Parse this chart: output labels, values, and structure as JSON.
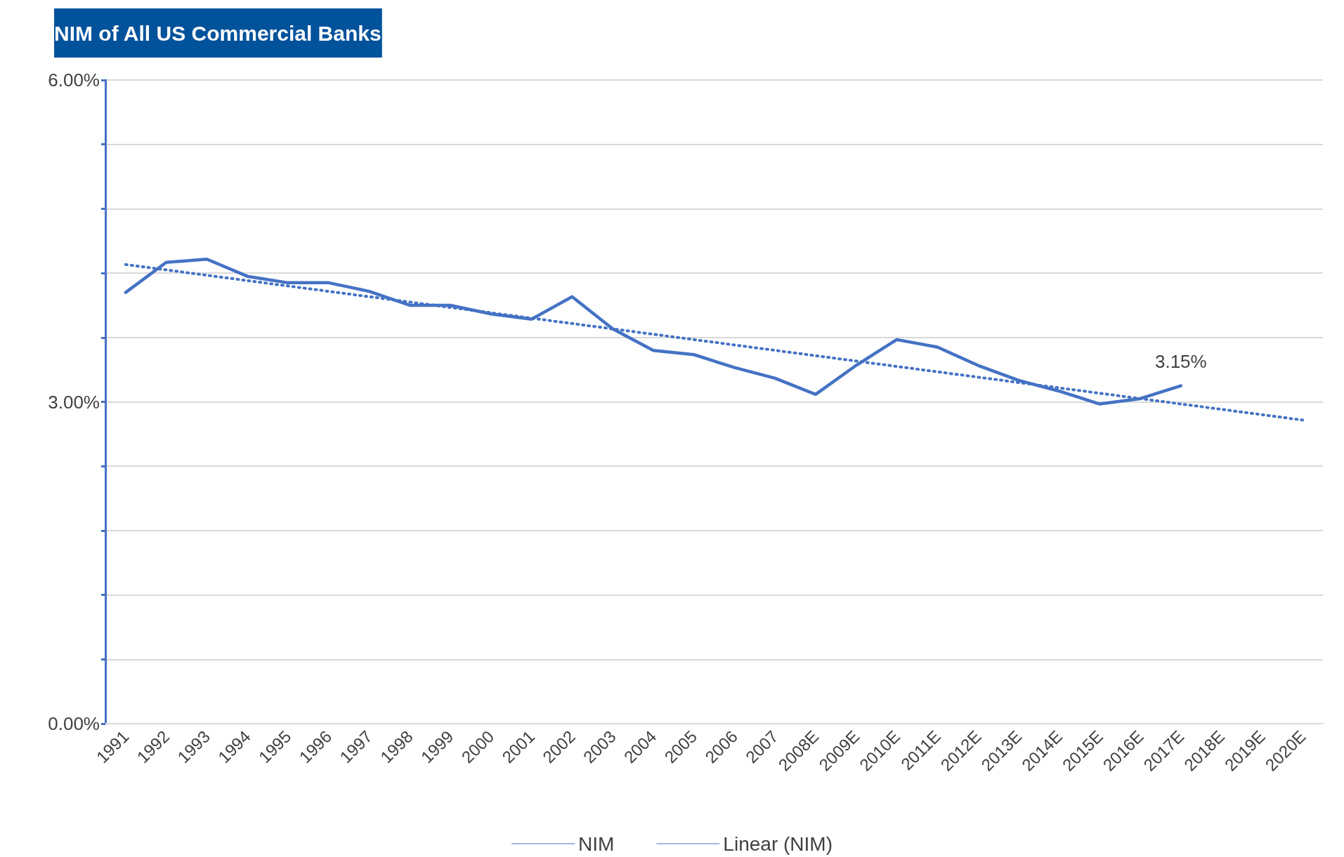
{
  "chart_data": {
    "type": "line",
    "title": "NIM of All US Commercial Banks",
    "categories": [
      "1991",
      "1992",
      "1993",
      "1994",
      "1995",
      "1996",
      "1997",
      "1998",
      "1999",
      "2000",
      "2001",
      "2002",
      "2003",
      "2004",
      "2005",
      "2006",
      "2007",
      "2008E",
      "2009E",
      "2010E",
      "2011E",
      "2012E",
      "2013E",
      "2014E",
      "2015E",
      "2016E",
      "2017E",
      "2018E",
      "2019E",
      "2020E"
    ],
    "series": [
      {
        "name": "NIM",
        "color": "#4472c4",
        "line_style": "solid",
        "values": [
          4.02,
          4.3,
          4.33,
          4.17,
          4.11,
          4.11,
          4.03,
          3.9,
          3.9,
          3.82,
          3.77,
          3.98,
          3.68,
          3.48,
          3.44,
          3.32,
          3.22,
          3.07,
          3.34,
          3.58,
          3.51,
          3.34,
          3.2,
          3.1,
          2.98,
          3.03,
          3.15,
          null,
          null,
          null
        ],
        "value_labels": [
          null,
          null,
          null,
          null,
          null,
          null,
          null,
          null,
          null,
          null,
          null,
          null,
          null,
          null,
          null,
          null,
          null,
          null,
          null,
          null,
          null,
          null,
          null,
          null,
          null,
          null,
          "3.15%",
          null,
          null,
          null
        ]
      },
      {
        "name": "Linear (NIM)",
        "color": "#4472c4",
        "line_style": "dotted",
        "values": [
          4.28,
          null,
          null,
          null,
          null,
          null,
          null,
          null,
          null,
          null,
          null,
          null,
          null,
          null,
          null,
          null,
          null,
          null,
          null,
          null,
          null,
          null,
          null,
          null,
          null,
          null,
          null,
          null,
          null,
          2.83
        ]
      }
    ],
    "ylim": [
      0,
      6
    ],
    "yticks": [
      {
        "value": 0,
        "label": "0.00%"
      },
      {
        "value": 0.6,
        "label": null
      },
      {
        "value": 1.2,
        "label": null
      },
      {
        "value": 1.8,
        "label": null
      },
      {
        "value": 2.4,
        "label": null
      },
      {
        "value": 3,
        "label": "3.00%"
      },
      {
        "value": 3.6,
        "label": null
      },
      {
        "value": 4.2,
        "label": null
      },
      {
        "value": 4.8,
        "label": null
      },
      {
        "value": 5.4,
        "label": null
      },
      {
        "value": 6,
        "label": "6.00%"
      }
    ],
    "grid": "y",
    "legend": "bottom",
    "marker": "none"
  }
}
